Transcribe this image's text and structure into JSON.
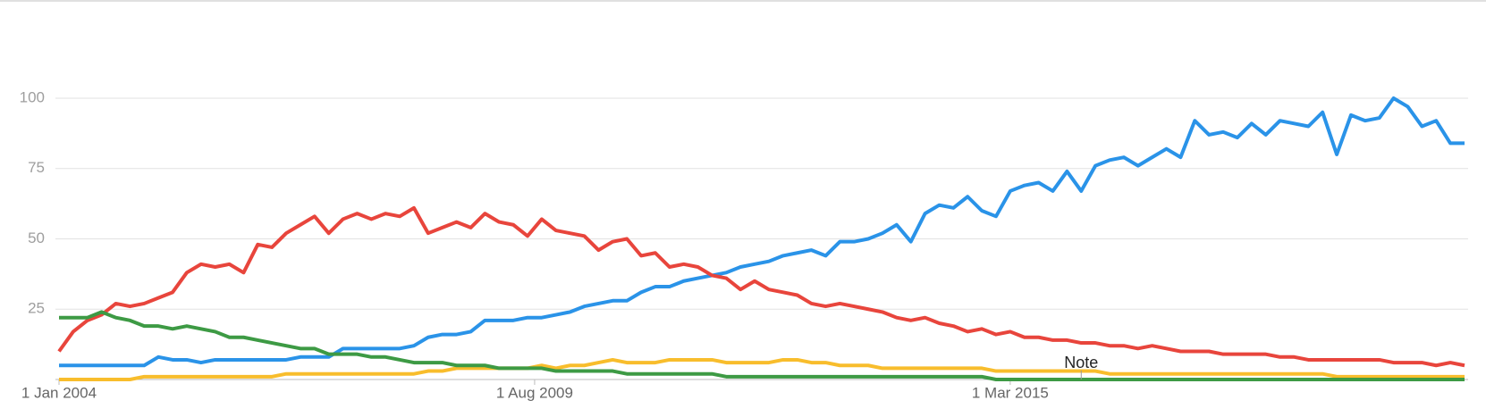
{
  "chart_data": {
    "type": "line",
    "x": [
      "2004-01",
      "2004-03",
      "2004-05",
      "2004-07",
      "2004-09",
      "2004-11",
      "2005-01",
      "2005-03",
      "2005-05",
      "2005-07",
      "2005-09",
      "2005-11",
      "2006-01",
      "2006-03",
      "2006-05",
      "2006-07",
      "2006-09",
      "2006-11",
      "2007-01",
      "2007-03",
      "2007-05",
      "2007-07",
      "2007-09",
      "2007-11",
      "2008-01",
      "2008-03",
      "2008-05",
      "2008-07",
      "2008-09",
      "2008-11",
      "2009-01",
      "2009-03",
      "2009-05",
      "2009-07",
      "2009-09",
      "2009-11",
      "2010-01",
      "2010-03",
      "2010-05",
      "2010-07",
      "2010-09",
      "2010-11",
      "2011-01",
      "2011-03",
      "2011-05",
      "2011-07",
      "2011-09",
      "2011-11",
      "2012-01",
      "2012-03",
      "2012-05",
      "2012-07",
      "2012-09",
      "2012-11",
      "2013-01",
      "2013-03",
      "2013-05",
      "2013-07",
      "2013-09",
      "2013-11",
      "2014-01",
      "2014-03",
      "2014-05",
      "2014-07",
      "2014-09",
      "2014-11",
      "2015-01",
      "2015-03",
      "2015-05",
      "2015-07",
      "2015-09",
      "2015-11",
      "2016-01",
      "2016-03",
      "2016-05",
      "2016-07",
      "2016-09",
      "2016-11",
      "2017-01",
      "2017-03",
      "2017-05",
      "2017-07",
      "2017-09",
      "2017-11",
      "2018-01",
      "2018-03",
      "2018-05",
      "2018-07",
      "2018-09",
      "2018-11",
      "2019-01",
      "2019-03",
      "2019-05",
      "2019-07",
      "2019-09",
      "2019-11",
      "2020-01",
      "2020-03",
      "2020-05",
      "2020-07"
    ],
    "series": [
      {
        "color": "#2a93e8",
        "values": [
          5,
          5,
          5,
          5,
          5,
          5,
          5,
          8,
          7,
          7,
          6,
          7,
          7,
          7,
          7,
          7,
          7,
          8,
          8,
          8,
          11,
          11,
          11,
          11,
          11,
          12,
          15,
          16,
          16,
          17,
          21,
          21,
          21,
          22,
          22,
          23,
          24,
          26,
          27,
          28,
          28,
          31,
          33,
          33,
          35,
          36,
          37,
          38,
          40,
          41,
          42,
          44,
          45,
          46,
          44,
          49,
          49,
          50,
          52,
          55,
          49,
          59,
          62,
          61,
          65,
          60,
          58,
          67,
          69,
          70,
          67,
          74,
          67,
          76,
          78,
          79,
          76,
          79,
          82,
          79,
          92,
          87,
          88,
          86,
          91,
          87,
          92,
          91,
          90,
          95,
          80,
          94,
          92,
          93,
          100,
          97,
          90,
          92,
          84,
          84
        ]
      },
      {
        "color": "#e8453c",
        "values": [
          10,
          17,
          21,
          23,
          27,
          26,
          27,
          29,
          31,
          38,
          41,
          40,
          41,
          38,
          48,
          47,
          52,
          55,
          58,
          52,
          57,
          59,
          57,
          59,
          58,
          61,
          52,
          54,
          56,
          54,
          59,
          56,
          55,
          51,
          57,
          53,
          52,
          51,
          46,
          49,
          50,
          44,
          45,
          40,
          41,
          40,
          37,
          36,
          32,
          35,
          32,
          31,
          30,
          27,
          26,
          27,
          26,
          25,
          24,
          22,
          21,
          22,
          20,
          19,
          17,
          18,
          16,
          17,
          15,
          15,
          14,
          14,
          13,
          13,
          12,
          12,
          11,
          12,
          11,
          10,
          10,
          10,
          9,
          9,
          9,
          9,
          8,
          8,
          7,
          7,
          7,
          7,
          7,
          7,
          6,
          6,
          6,
          5,
          6,
          5
        ]
      },
      {
        "color": "#f8bd2c",
        "values": [
          0,
          0,
          0,
          0,
          0,
          0,
          1,
          1,
          1,
          1,
          1,
          1,
          1,
          1,
          1,
          1,
          2,
          2,
          2,
          2,
          2,
          2,
          2,
          2,
          2,
          2,
          3,
          3,
          4,
          4,
          4,
          4,
          4,
          4,
          5,
          4,
          5,
          5,
          6,
          7,
          6,
          6,
          6,
          7,
          7,
          7,
          7,
          6,
          6,
          6,
          6,
          7,
          7,
          6,
          6,
          5,
          5,
          5,
          4,
          4,
          4,
          4,
          4,
          4,
          4,
          4,
          3,
          3,
          3,
          3,
          3,
          3,
          3,
          3,
          2,
          2,
          2,
          2,
          2,
          2,
          2,
          2,
          2,
          2,
          2,
          2,
          2,
          2,
          2,
          2,
          1,
          1,
          1,
          1,
          1,
          1,
          1,
          1,
          1,
          1
        ]
      },
      {
        "color": "#3d9a44",
        "values": [
          22,
          22,
          22,
          24,
          22,
          21,
          19,
          19,
          18,
          19,
          18,
          17,
          15,
          15,
          14,
          13,
          12,
          11,
          11,
          9,
          9,
          9,
          8,
          8,
          7,
          6,
          6,
          6,
          5,
          5,
          5,
          4,
          4,
          4,
          4,
          3,
          3,
          3,
          3,
          3,
          2,
          2,
          2,
          2,
          2,
          2,
          2,
          1,
          1,
          1,
          1,
          1,
          1,
          1,
          1,
          1,
          1,
          1,
          1,
          1,
          1,
          1,
          1,
          1,
          1,
          1,
          0,
          0,
          0,
          0,
          0,
          0,
          0,
          0,
          0,
          0,
          0,
          0,
          0,
          0,
          0,
          0,
          0,
          0,
          0,
          0,
          0,
          0,
          0,
          0,
          0,
          0,
          0,
          0,
          0,
          0,
          0,
          0,
          0,
          0
        ]
      }
    ],
    "xlim": [
      "2004-01",
      "2020-07"
    ],
    "xticks": [
      {
        "value": "2004-01",
        "label": "1 Jan 2004"
      },
      {
        "value": "2009-08",
        "label": "1 Aug 2009"
      },
      {
        "value": "2015-03",
        "label": "1 Mar 2015"
      }
    ],
    "ylim": [
      0,
      100
    ],
    "yticks": [
      25,
      50,
      75,
      100
    ],
    "grid": true,
    "annotations": [
      {
        "text": "Note",
        "x": "2016-01"
      }
    ]
  }
}
